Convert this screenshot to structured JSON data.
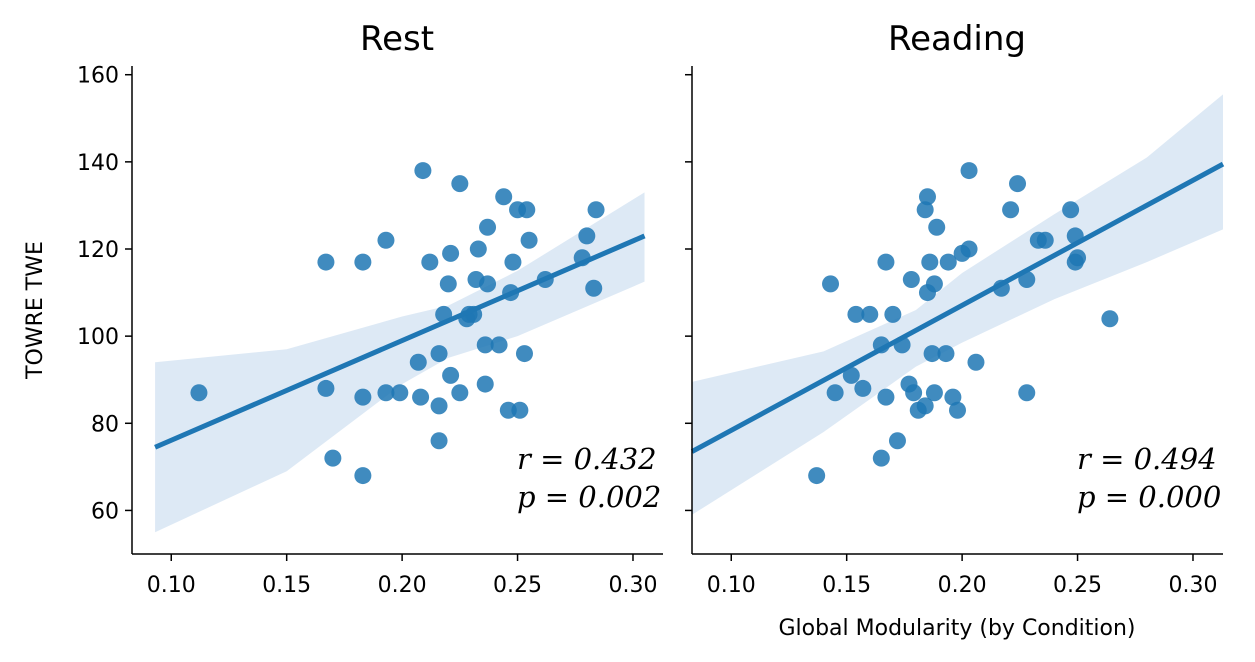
{
  "figure": {
    "ylabel": "TOWRE TWE",
    "xlabel": "Global Modularity (by Condition)",
    "colors": {
      "points": "#1f77b4",
      "line": "#1f77b4",
      "band": "#c6dbef",
      "axes": "#000000"
    }
  },
  "chart_data": [
    {
      "type": "scatter",
      "title": "Rest",
      "xlabel": "",
      "ylabel": "TOWRE TWE",
      "xlim": [
        0.083,
        0.313
      ],
      "ylim": [
        50,
        162
      ],
      "x_ticks": [
        "0.10",
        "0.15",
        "0.20",
        "0.25",
        "0.30"
      ],
      "x_tick_values": [
        0.1,
        0.15,
        0.2,
        0.25,
        0.3
      ],
      "y_ticks": [
        "60",
        "80",
        "100",
        "120",
        "140",
        "160"
      ],
      "y_tick_values": [
        60,
        80,
        100,
        120,
        140,
        160
      ],
      "grid": false,
      "regression": {
        "x_range": [
          0.093,
          0.305
        ],
        "y_range": [
          74.5,
          123.0
        ]
      },
      "ci_band": {
        "x": [
          0.093,
          0.15,
          0.2,
          0.22,
          0.25,
          0.305
        ],
        "upper": [
          94,
          97,
          104.5,
          107,
          115,
          133
        ],
        "lower": [
          55,
          69,
          89,
          95,
          100,
          112.5
        ]
      },
      "stats": {
        "r_label": "r = 0.432",
        "p_label": "p = 0.002"
      },
      "points": [
        [
          0.112,
          87
        ],
        [
          0.167,
          117
        ],
        [
          0.167,
          88
        ],
        [
          0.17,
          72
        ],
        [
          0.183,
          117
        ],
        [
          0.183,
          86
        ],
        [
          0.183,
          68
        ],
        [
          0.193,
          122
        ],
        [
          0.193,
          87
        ],
        [
          0.199,
          87
        ],
        [
          0.207,
          94
        ],
        [
          0.208,
          86
        ],
        [
          0.209,
          138
        ],
        [
          0.212,
          117
        ],
        [
          0.216,
          96
        ],
        [
          0.216,
          84
        ],
        [
          0.216,
          76
        ],
        [
          0.218,
          105
        ],
        [
          0.22,
          112
        ],
        [
          0.221,
          119
        ],
        [
          0.221,
          91
        ],
        [
          0.225,
          135
        ],
        [
          0.225,
          87
        ],
        [
          0.228,
          104
        ],
        [
          0.229,
          105
        ],
        [
          0.231,
          105
        ],
        [
          0.232,
          113
        ],
        [
          0.233,
          120
        ],
        [
          0.236,
          98
        ],
        [
          0.236,
          89
        ],
        [
          0.237,
          125
        ],
        [
          0.237,
          112
        ],
        [
          0.242,
          98
        ],
        [
          0.244,
          132
        ],
        [
          0.246,
          83
        ],
        [
          0.247,
          110
        ],
        [
          0.248,
          117
        ],
        [
          0.25,
          129
        ],
        [
          0.251,
          83
        ],
        [
          0.253,
          96
        ],
        [
          0.254,
          129
        ],
        [
          0.255,
          122
        ],
        [
          0.262,
          113
        ],
        [
          0.278,
          118
        ],
        [
          0.28,
          123
        ],
        [
          0.283,
          111
        ],
        [
          0.284,
          129
        ]
      ]
    },
    {
      "type": "scatter",
      "title": "Reading",
      "xlabel": "Global Modularity (by Condition)",
      "ylabel": "",
      "xlim": [
        0.083,
        0.313
      ],
      "ylim": [
        50,
        162
      ],
      "x_ticks": [
        "0.10",
        "0.15",
        "0.20",
        "0.25",
        "0.30"
      ],
      "x_tick_values": [
        0.1,
        0.15,
        0.2,
        0.25,
        0.3
      ],
      "y_ticks": [
        "",
        "",
        "",
        "",
        "",
        ""
      ],
      "y_tick_values": [
        60,
        80,
        100,
        120,
        140,
        160
      ],
      "grid": false,
      "regression": {
        "x_range": [
          0.083,
          0.313
        ],
        "y_range": [
          73.5,
          139.5
        ]
      },
      "ci_band": {
        "x": [
          0.083,
          0.14,
          0.18,
          0.2,
          0.24,
          0.28,
          0.313
        ],
        "upper": [
          89.5,
          96.5,
          106,
          114.5,
          128,
          141,
          155.5
        ],
        "lower": [
          59,
          78,
          93,
          98.5,
          108.5,
          117,
          124.5
        ]
      },
      "stats": {
        "r_label": "r = 0.494",
        "p_label": "p = 0.000"
      },
      "points": [
        [
          0.137,
          68
        ],
        [
          0.143,
          112
        ],
        [
          0.145,
          87
        ],
        [
          0.152,
          91
        ],
        [
          0.154,
          105
        ],
        [
          0.157,
          88
        ],
        [
          0.16,
          105
        ],
        [
          0.165,
          98
        ],
        [
          0.165,
          72
        ],
        [
          0.167,
          117
        ],
        [
          0.167,
          86
        ],
        [
          0.17,
          105
        ],
        [
          0.172,
          76
        ],
        [
          0.174,
          98
        ],
        [
          0.177,
          89
        ],
        [
          0.178,
          113
        ],
        [
          0.179,
          87
        ],
        [
          0.181,
          83
        ],
        [
          0.184,
          84
        ],
        [
          0.184,
          129
        ],
        [
          0.185,
          132
        ],
        [
          0.185,
          110
        ],
        [
          0.186,
          117
        ],
        [
          0.187,
          96
        ],
        [
          0.188,
          87
        ],
        [
          0.188,
          112
        ],
        [
          0.189,
          125
        ],
        [
          0.193,
          96
        ],
        [
          0.194,
          117
        ],
        [
          0.196,
          86
        ],
        [
          0.198,
          83
        ],
        [
          0.2,
          119
        ],
        [
          0.203,
          120
        ],
        [
          0.203,
          138
        ],
        [
          0.206,
          94
        ],
        [
          0.217,
          111
        ],
        [
          0.221,
          129
        ],
        [
          0.224,
          135
        ],
        [
          0.228,
          113
        ],
        [
          0.228,
          87
        ],
        [
          0.233,
          122
        ],
        [
          0.236,
          122
        ],
        [
          0.247,
          129
        ],
        [
          0.249,
          123
        ],
        [
          0.249,
          117
        ],
        [
          0.25,
          118
        ],
        [
          0.264,
          104
        ]
      ]
    }
  ]
}
